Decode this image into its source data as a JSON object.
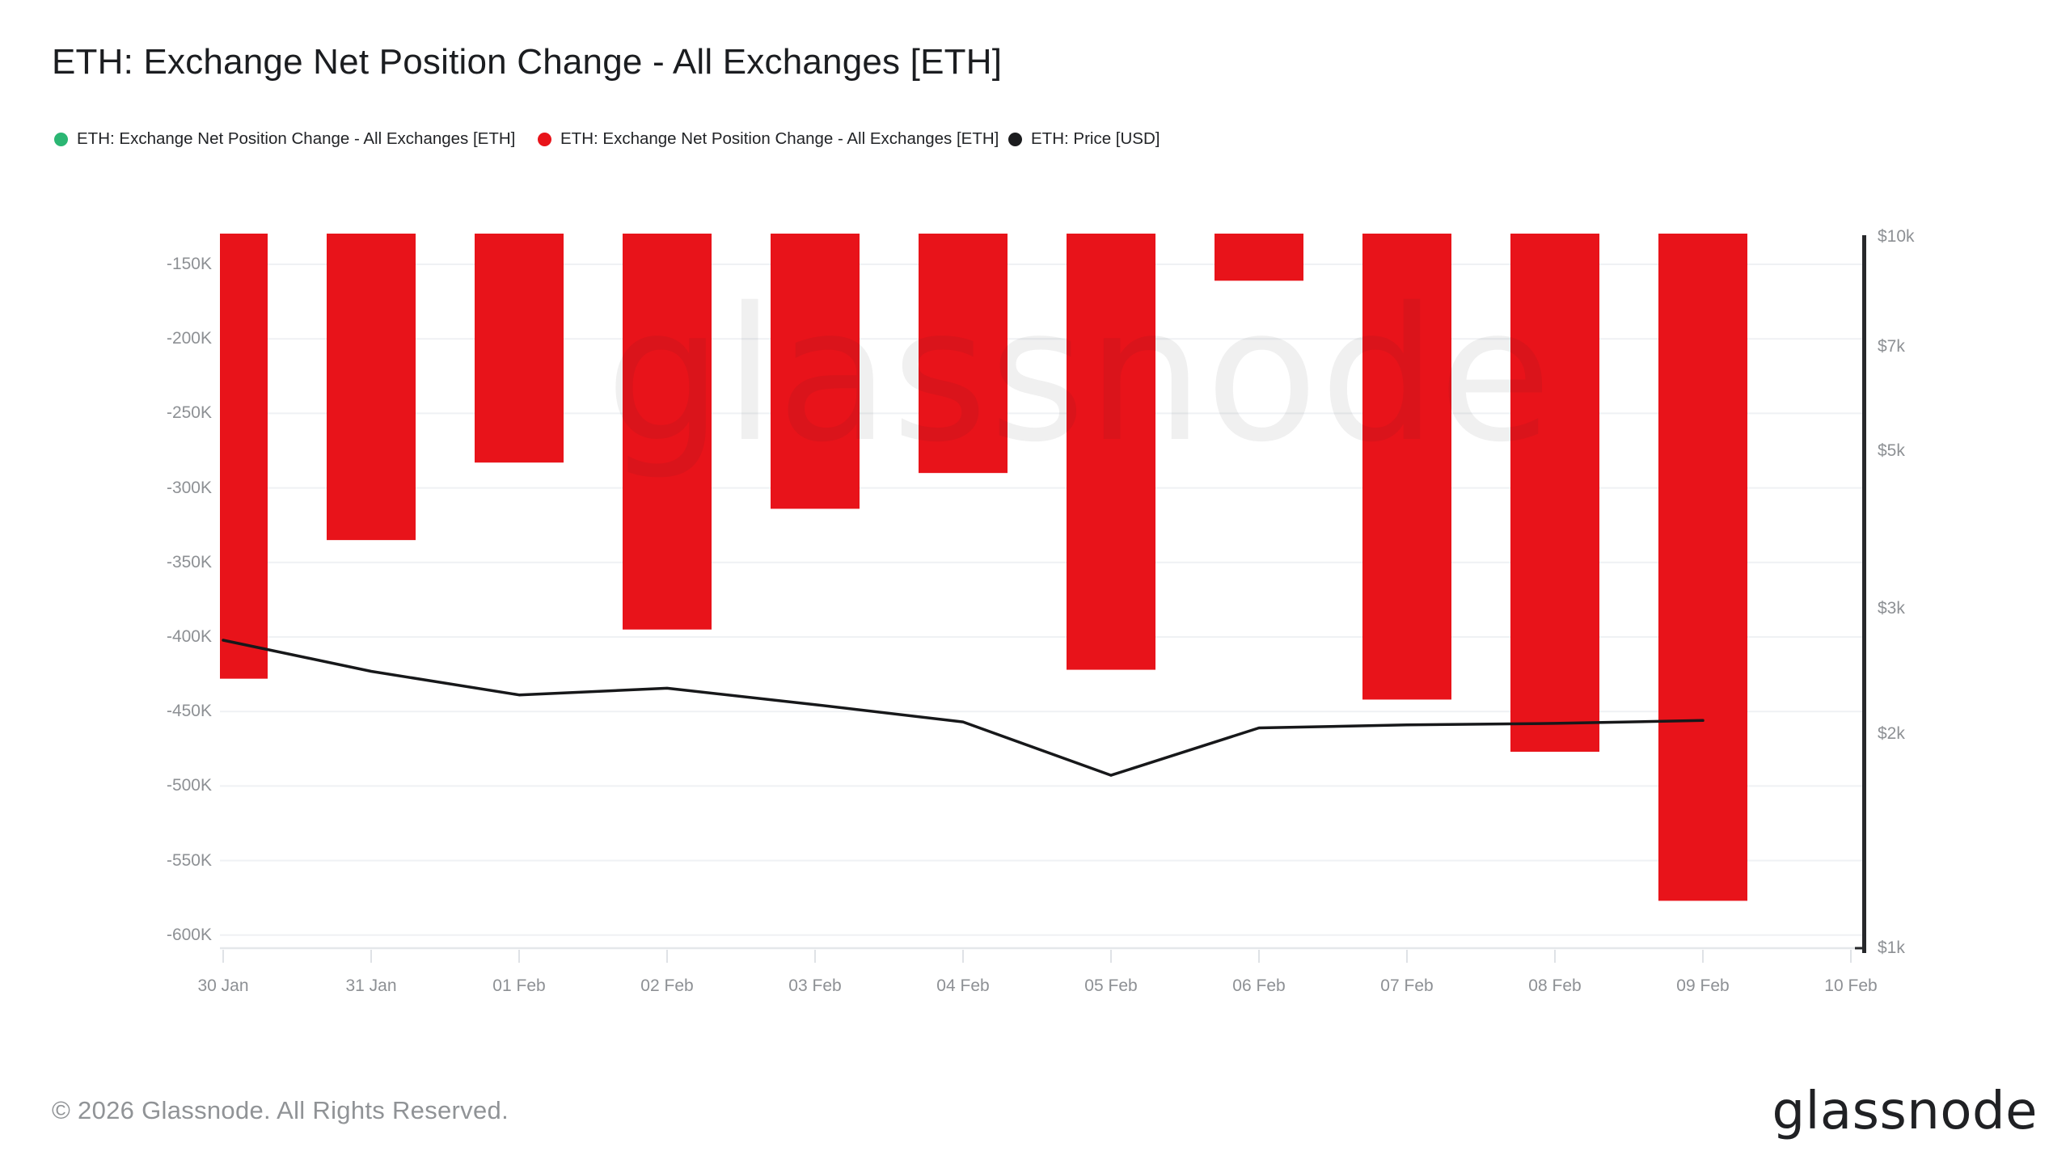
{
  "title": "ETH: Exchange Net Position Change - All Exchanges [ETH]",
  "legend": [
    {
      "label": "ETH: Exchange Net Position Change - All Exchanges [ETH]",
      "color": "#2bb673"
    },
    {
      "label": "ETH: Exchange Net Position Change - All Exchanges [ETH]",
      "color": "#e8131a"
    },
    {
      "label": "ETH: Price [USD]",
      "color": "#1b1c1e"
    }
  ],
  "watermark": "glassnode",
  "footer": {
    "copyright": "© 2026 Glassnode. All Rights Reserved.",
    "logo_text": "glassnode"
  },
  "chart_data": {
    "type": "bar+line",
    "categories": [
      "30 Jan",
      "31 Jan",
      "01 Feb",
      "02 Feb",
      "03 Feb",
      "04 Feb",
      "05 Feb",
      "06 Feb",
      "07 Feb",
      "08 Feb",
      "09 Feb",
      "10 Feb"
    ],
    "series": [
      {
        "name": "ETH: Exchange Net Position Change - All Exchanges [ETH] (positive)",
        "type": "bar",
        "axis": "left",
        "color": "#2bb673",
        "values": [
          null,
          null,
          null,
          null,
          null,
          null,
          null,
          null,
          null,
          null,
          null,
          null
        ]
      },
      {
        "name": "ETH: Exchange Net Position Change - All Exchanges [ETH] (negative)",
        "type": "bar",
        "axis": "left",
        "color": "#e8131a",
        "values": [
          -428000,
          -335000,
          -283000,
          -395000,
          -314000,
          -290000,
          -422000,
          -161000,
          -442000,
          -477000,
          -577000,
          null
        ]
      },
      {
        "name": "ETH: Price [USD]",
        "type": "line",
        "axis": "right",
        "color": "#17181a",
        "values": [
          2710,
          2450,
          2270,
          2320,
          2200,
          2080,
          1750,
          2040,
          2060,
          2070,
          2090,
          null
        ]
      }
    ],
    "left_axis": {
      "tick_labels": [
        "-150K",
        "-200K",
        "-250K",
        "-300K",
        "-350K",
        "-400K",
        "-450K",
        "-500K",
        "-550K",
        "-600K"
      ],
      "tick_values": [
        -150000,
        -200000,
        -250000,
        -300000,
        -350000,
        -400000,
        -450000,
        -500000,
        -550000,
        -600000
      ],
      "scale": "linear",
      "grid": true
    },
    "right_axis": {
      "tick_labels": [
        "$10k",
        "$7k",
        "$5k",
        "$3k",
        "$2k",
        "$1k"
      ],
      "tick_values": [
        10000,
        7000,
        5000,
        3000,
        2000,
        1000
      ],
      "scale": "log",
      "range": [
        1000,
        10000
      ],
      "grid": false
    }
  }
}
